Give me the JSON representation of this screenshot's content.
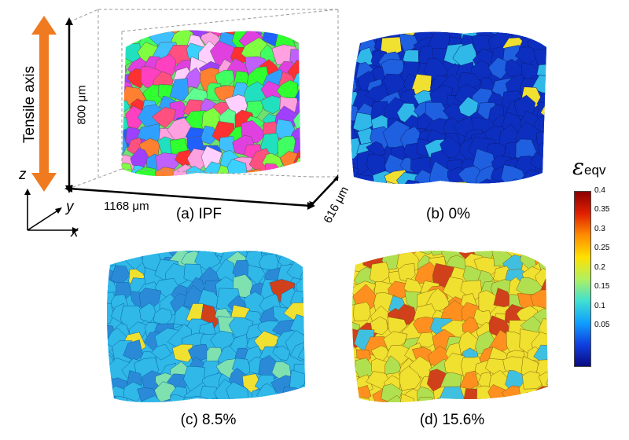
{
  "panels": {
    "a": {
      "caption": "(a) IPF"
    },
    "b": {
      "caption": "(b) 0%"
    },
    "c": {
      "caption": "(c) 8.5%"
    },
    "d": {
      "caption": "(d) 15.6%"
    }
  },
  "dimensions": {
    "height": "800 μm",
    "width": "1168 μm",
    "depth": "616 μm"
  },
  "tensile_axis_label": "Tensile axis",
  "axes": {
    "z": "z",
    "y": "y",
    "x": "x"
  },
  "colorbar": {
    "symbol": "ε",
    "subscript": "eqv",
    "ticks": [
      "0.4",
      "0.35",
      "0.3",
      "0.25",
      "0.2",
      "0.15",
      "0.1",
      "0.05"
    ],
    "colors": [
      "#8b0000",
      "#e02000",
      "#ff8c00",
      "#ffe000",
      "#b0f060",
      "#40e0d0",
      "#10a0ff",
      "#1040e0",
      "#0a0a80"
    ]
  },
  "colors": {
    "arrow": "#f07a1f",
    "strain_low": "#0d2fc0",
    "strain_mid": "#2fb8e8",
    "strain_high": "#f0e030",
    "strain_peak": "#d0401a"
  }
}
